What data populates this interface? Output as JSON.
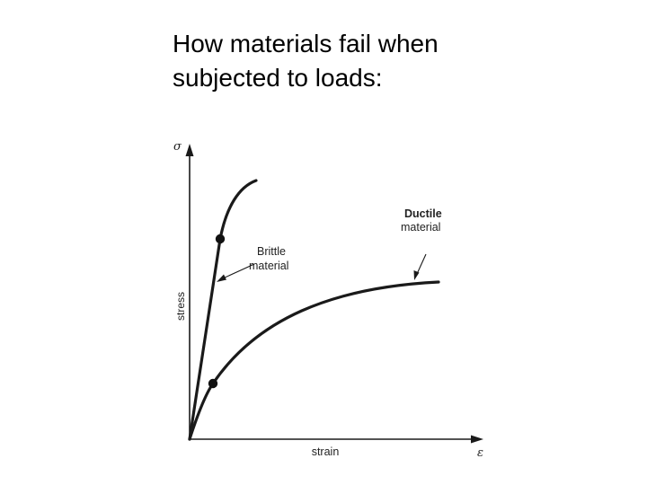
{
  "slide": {
    "title_line1": "How materials fail when",
    "title_line2": "subjected to loads:"
  },
  "diagram": {
    "y_axis_symbol": "σ",
    "y_axis_label": "stress",
    "x_axis_symbol": "ε",
    "x_axis_label": "strain",
    "brittle_label_line1": "Brittle",
    "brittle_label_line2": "material",
    "ductile_label_line1": "Ductile",
    "ductile_label_line2": "material",
    "line_color": "#1a1a1a",
    "figure_background": "#ffffff"
  }
}
